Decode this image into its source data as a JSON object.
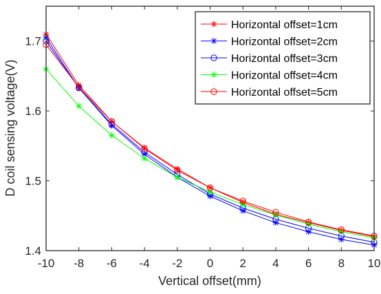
{
  "chart_data": {
    "type": "line",
    "title": "",
    "xlabel": "Vertical offset(mm)",
    "ylabel": "D coil sensing voltage(V)",
    "xlim": [
      -10,
      10
    ],
    "ylim": [
      1.4,
      1.75
    ],
    "xticks": [
      -10,
      -8,
      -6,
      -4,
      -2,
      0,
      2,
      4,
      6,
      8,
      10
    ],
    "xtick_labels": [
      "-10",
      "-8",
      "-6",
      "-4",
      "-2",
      "0",
      "2",
      "4",
      "6",
      "8",
      "10"
    ],
    "yticks": [
      1.4,
      1.5,
      1.6,
      1.7
    ],
    "ytick_labels": [
      "1.4",
      "1.5",
      "1.6",
      "1.7"
    ],
    "grid": false,
    "legend_position": "top-right",
    "x": [
      -10,
      -8,
      -6,
      -4,
      -2,
      0,
      2,
      4,
      6,
      8,
      10
    ],
    "series": [
      {
        "name": "Horizontal offset=1cm",
        "color": "#ff0000",
        "marker": "star",
        "values": [
          1.71,
          1.637,
          1.585,
          1.547,
          1.517,
          1.49,
          1.469,
          1.452,
          1.44,
          1.429,
          1.42
        ]
      },
      {
        "name": "Horizontal offset=2cm",
        "color": "#0000ff",
        "marker": "star",
        "values": [
          1.705,
          1.633,
          1.579,
          1.538,
          1.505,
          1.478,
          1.457,
          1.44,
          1.427,
          1.416,
          1.408
        ]
      },
      {
        "name": "Horizontal offset=3cm",
        "color": "#0000ff",
        "marker": "circle",
        "values": [
          1.7,
          1.633,
          1.581,
          1.541,
          1.509,
          1.481,
          1.461,
          1.445,
          1.432,
          1.421,
          1.412
        ]
      },
      {
        "name": "Horizontal offset=4cm",
        "color": "#00ff00",
        "marker": "star",
        "values": [
          1.66,
          1.607,
          1.565,
          1.532,
          1.505,
          1.484,
          1.466,
          1.451,
          1.438,
          1.427,
          1.418
        ]
      },
      {
        "name": "Horizontal offset=5cm",
        "color": "#ff0000",
        "marker": "circle",
        "values": [
          1.695,
          1.634,
          1.585,
          1.546,
          1.515,
          1.49,
          1.471,
          1.455,
          1.441,
          1.43,
          1.421
        ]
      }
    ]
  }
}
